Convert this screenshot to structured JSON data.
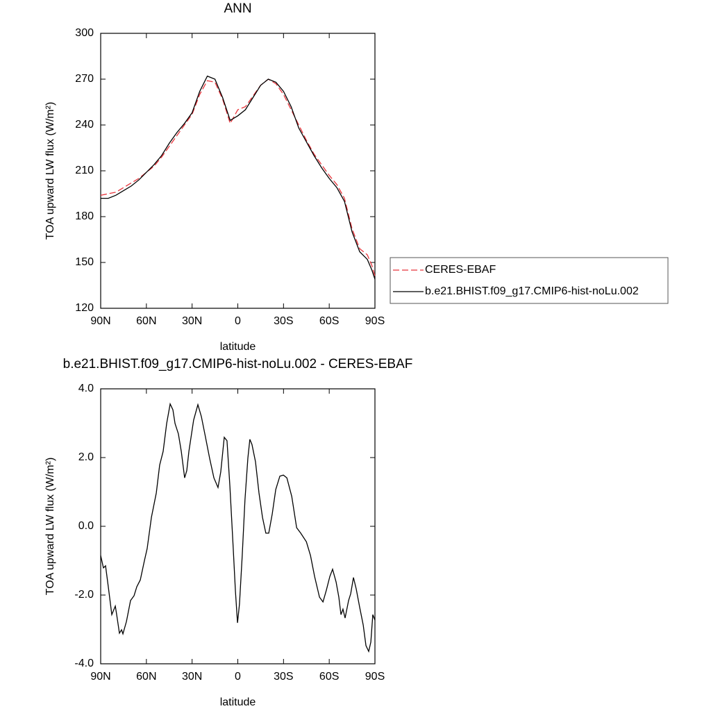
{
  "chart_data": [
    {
      "type": "line",
      "title": "ANN",
      "xlabel": "latitude",
      "ylabel": "TOA upward LW flux (W/m²)",
      "x": [
        90,
        85,
        80,
        75,
        70,
        65,
        60,
        55,
        50,
        45,
        40,
        35,
        30,
        25,
        20,
        15,
        10,
        5,
        0,
        -5,
        -10,
        -15,
        -20,
        -25,
        -30,
        -35,
        -40,
        -45,
        -50,
        -55,
        -60,
        -65,
        -70,
        -75,
        -80,
        -85,
        -88,
        -90
      ],
      "series": [
        {
          "name": "CERES-EBAF",
          "color": "#e8333a",
          "dash": true,
          "values": [
            194,
            195,
            196,
            199,
            202,
            205,
            209,
            213,
            219,
            226,
            233,
            240,
            247,
            260,
            269,
            268,
            257,
            241,
            250,
            252,
            259,
            266,
            270,
            267,
            260,
            250,
            240,
            230,
            221,
            214,
            207,
            201,
            192,
            172,
            159,
            155,
            148,
            141
          ]
        },
        {
          "name": "b.e21.BHIST.f09_g17.CMIP6-hist-noLu.002",
          "color": "#000000",
          "dash": false,
          "values": [
            192,
            192,
            194,
            197,
            200,
            204,
            209,
            214,
            220,
            228,
            235,
            241,
            248,
            262,
            272,
            270,
            258,
            243,
            246,
            250,
            258,
            266,
            270,
            268,
            262,
            252,
            238,
            229,
            220,
            212,
            205,
            199,
            190,
            170,
            157,
            152,
            145,
            139
          ]
        }
      ],
      "xlim": [
        90,
        -90
      ],
      "xticks": [
        {
          "value": 90,
          "label": "90N"
        },
        {
          "value": 60,
          "label": "60N"
        },
        {
          "value": 30,
          "label": "30N"
        },
        0,
        {
          "value": -30,
          "label": "30S"
        },
        {
          "value": -60,
          "label": "60S"
        },
        {
          "value": -90,
          "label": "90S"
        }
      ],
      "ylim": [
        120,
        300
      ],
      "yticks": [
        120,
        150,
        180,
        210,
        240,
        270,
        300
      ],
      "legend": "right"
    },
    {
      "type": "line",
      "title": "b.e21.BHIST.f09_g17.CMIP6-hist-noLu.002 - CERES-EBAF",
      "xlabel": "latitude",
      "ylabel": "TOA upward LW flux (W/m²)",
      "x": [
        90,
        88.2,
        86.8,
        85,
        82.7,
        80.4,
        79.5,
        77.7,
        76.3,
        75.4,
        73.1,
        70.4,
        68.1,
        66.3,
        64,
        61.3,
        59.5,
        56.7,
        53.5,
        51.3,
        49,
        46.7,
        44.4,
        42.6,
        41.2,
        39,
        37.1,
        34.9,
        33.5,
        32.1,
        29,
        26.2,
        23.9,
        21.2,
        18.5,
        15.7,
        13,
        11.2,
        8.9,
        7.1,
        5.2,
        3,
        1.6,
        0.2,
        -1.1,
        -2.9,
        -4.7,
        -6.6,
        -7.9,
        -9.3,
        -11.6,
        -13.9,
        -16.2,
        -18.4,
        -20.3,
        -22.6,
        -24.9,
        -27.6,
        -29.9,
        -32.2,
        -35.4,
        -38.6,
        -41.3,
        -45,
        -47.7,
        -50.4,
        -53.6,
        -55.9,
        -58.1,
        -60.4,
        -62.2,
        -64.5,
        -66.3,
        -67.7,
        -69,
        -70.4,
        -72.7,
        -74.1,
        -75.9,
        -77.7,
        -80,
        -82.3,
        -84.1,
        -85.9,
        -87.3,
        -88.6,
        -90
      ],
      "series": [
        {
          "name": "b.e21.BHIST.f09_g17.CMIP6-hist-noLu.002 - CERES-EBAF",
          "color": "#000000",
          "dash": false,
          "values": [
            -0.85,
            -1.21,
            -1.15,
            -1.76,
            -2.57,
            -2.32,
            -2.57,
            -3.11,
            -3.01,
            -3.13,
            -2.77,
            -2.16,
            -2.02,
            -1.76,
            -1.56,
            -1.0,
            -0.65,
            0.26,
            0.97,
            1.78,
            2.18,
            2.99,
            3.56,
            3.39,
            2.99,
            2.69,
            2.18,
            1.41,
            1.62,
            2.18,
            3.09,
            3.54,
            3.19,
            2.59,
            1.98,
            1.41,
            1.13,
            1.58,
            2.59,
            2.49,
            1.17,
            -0.65,
            -1.86,
            -2.81,
            -2.26,
            -0.85,
            0.77,
            1.98,
            2.53,
            2.38,
            1.88,
            0.97,
            0.26,
            -0.2,
            -0.2,
            0.36,
            1.07,
            1.46,
            1.49,
            1.41,
            0.87,
            -0.04,
            -0.2,
            -0.45,
            -0.85,
            -1.46,
            -2.06,
            -2.2,
            -1.86,
            -1.46,
            -1.25,
            -1.62,
            -2.06,
            -2.57,
            -2.41,
            -2.67,
            -2.16,
            -1.96,
            -1.49,
            -1.82,
            -2.36,
            -2.87,
            -3.47,
            -3.64,
            -3.37,
            -2.57,
            -2.73
          ]
        }
      ],
      "xlim": [
        90,
        -90
      ],
      "xticks": [
        {
          "value": 90,
          "label": "90N"
        },
        {
          "value": 60,
          "label": "60N"
        },
        {
          "value": 30,
          "label": "30N"
        },
        0,
        {
          "value": -30,
          "label": "30S"
        },
        {
          "value": -60,
          "label": "60S"
        },
        {
          "value": -90,
          "label": "90S"
        }
      ],
      "ylim": [
        -4,
        4
      ],
      "yticks": [
        {
          "value": -4,
          "label": "-4.0"
        },
        {
          "value": -2,
          "label": "-2.0"
        },
        {
          "value": 0,
          "label": "0.0"
        },
        {
          "value": 2,
          "label": "2.0"
        },
        {
          "value": 4,
          "label": "4.0"
        }
      ]
    }
  ]
}
